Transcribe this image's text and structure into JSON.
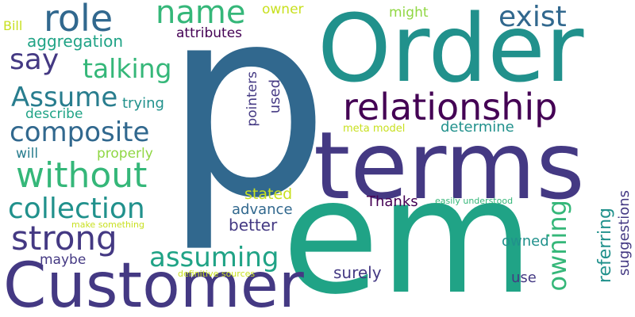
{
  "words": {
    "p": "p",
    "order": "Order",
    "terms": "terms",
    "em": "em",
    "customer": "Customer",
    "relationship": "relationship",
    "role": "role",
    "name": "name",
    "exist": "exist",
    "say": "say",
    "talking": "talking",
    "assume": "Assume",
    "composite": "composite",
    "without": "without",
    "collection": "collection",
    "strong": "strong",
    "assuming": "assuming",
    "owning": "owning",
    "referring": "referring",
    "suggestions": "suggestions",
    "pointers": "pointers",
    "used": "used",
    "attributes": "attributes",
    "aggregation": "aggregation",
    "bill": "Bill",
    "owner": "owner",
    "might": "might",
    "trying": "trying",
    "describe": "describe",
    "will": "will",
    "properly": "properly",
    "meta_model": "meta model",
    "determine": "determine",
    "stated": "stated",
    "thanks": "Thanks",
    "advance": "advance",
    "better": "better",
    "easily_understood": "easily understood",
    "make_something": "make something",
    "maybe": "maybe",
    "owned": "owned",
    "surely": "surely",
    "use": "use",
    "definitive_sources": "definitive sources"
  },
  "colors": {
    "dark_purple": "#440154",
    "indigo": "#443983",
    "slate_blue": "#31688e",
    "steel_teal": "#287d8e",
    "teal": "#21918c",
    "sea_green": "#20a386",
    "emerald": "#35b779",
    "green": "#5ec962",
    "lime": "#90d743",
    "yellow": "#c8e020"
  }
}
